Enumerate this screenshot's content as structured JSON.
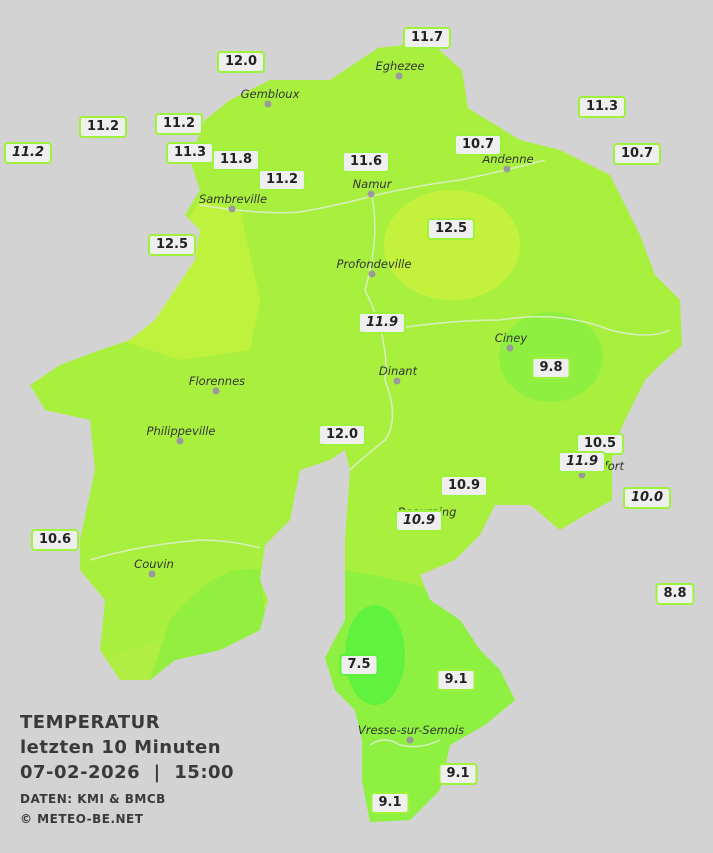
{
  "stations": [
    "11.7",
    "12.0",
    "11.3",
    "11.2",
    "11.2",
    "11.2",
    "11.3",
    "11.8",
    "11.6",
    "10.7",
    "10.7",
    "11.2",
    "12.5",
    "12.5",
    "11.9",
    "9.8",
    "12.0",
    "10.5",
    "11.9",
    "10.9",
    "10.0",
    "10.9",
    "10.6",
    "8.8",
    "7.5",
    "9.1",
    "9.1",
    "9.1"
  ],
  "cities": [
    "Eghezee",
    "Gembloux",
    "Andenne",
    "Namur",
    "Sambreville",
    "Profondeville",
    "Ciney",
    "Dinant",
    "Florennes",
    "Philippeville",
    "Rochefort",
    "Beauraing",
    "Couvin",
    "Vresse-sur-Semois"
  ],
  "legend": {
    "title": "TEMPERATUR",
    "subtitle": "letzten 10 Minuten",
    "timestamp": "07-02-2026  |  15:00",
    "source": "DATEN: KMI & BMCB",
    "copyright": "© METEO-BE.NET"
  }
}
